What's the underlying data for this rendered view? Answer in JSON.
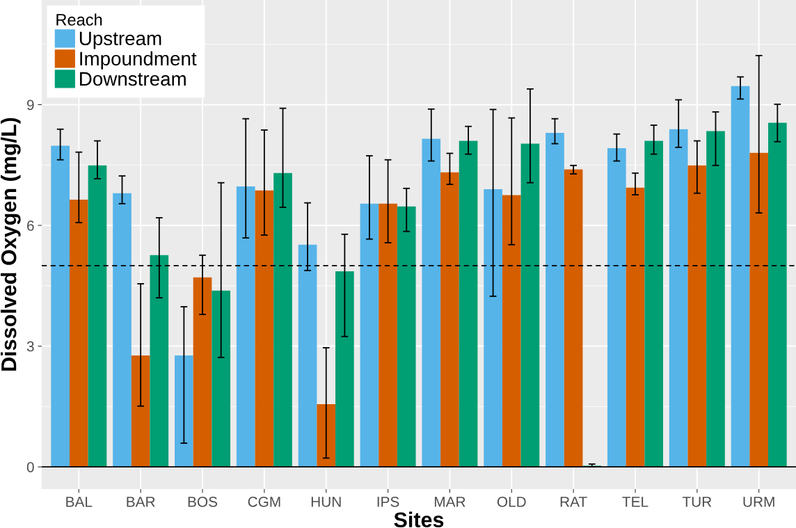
{
  "chart_data": {
    "type": "bar",
    "xlabel": "Sites",
    "ylabel": "Dissolved Oxygen (mg/L)",
    "legend_title": "Reach",
    "categories": [
      "BAL",
      "BAR",
      "BOS",
      "CGM",
      "HUN",
      "IPS",
      "MAR",
      "OLD",
      "RAT",
      "TEL",
      "TUR",
      "URM"
    ],
    "series": [
      {
        "name": "Upstream",
        "color": "#56b4e9",
        "values": [
          7.98,
          6.8,
          2.77,
          6.97,
          5.52,
          6.54,
          8.15,
          6.9,
          8.3,
          7.92,
          8.39,
          9.46
        ],
        "errors": [
          [
            7.63,
            8.39
          ],
          [
            6.54,
            7.23
          ],
          [
            0.59,
            3.98
          ],
          [
            5.69,
            8.65
          ],
          [
            4.88,
            6.56
          ],
          [
            5.66,
            7.73
          ],
          [
            7.6,
            8.89
          ],
          [
            4.24,
            8.88
          ],
          [
            8.03,
            8.65
          ],
          [
            7.6,
            8.27
          ],
          [
            7.94,
            9.12
          ],
          [
            9.14,
            9.69
          ]
        ]
      },
      {
        "name": "Impoundment",
        "color": "#d55e00",
        "values": [
          6.64,
          2.77,
          4.71,
          6.87,
          1.56,
          6.54,
          7.32,
          6.75,
          7.39,
          6.94,
          7.49,
          7.8
        ],
        "errors": [
          [
            6.07,
            7.82
          ],
          [
            1.51,
            4.55
          ],
          [
            3.79,
            5.26
          ],
          [
            5.76,
            8.37
          ],
          [
            0.22,
            2.96
          ],
          [
            5.57,
            7.63
          ],
          [
            7.02,
            7.79
          ],
          [
            5.52,
            8.67
          ],
          [
            7.28,
            7.49
          ],
          [
            6.76,
            7.3
          ],
          [
            6.8,
            8.1
          ],
          [
            6.31,
            10.22
          ]
        ]
      },
      {
        "name": "Downstream",
        "color": "#009e73",
        "values": [
          7.49,
          5.26,
          4.38,
          7.3,
          4.86,
          6.47,
          8.1,
          8.03,
          0.03,
          8.1,
          8.34,
          8.55
        ],
        "errors": [
          [
            7.16,
            8.1
          ],
          [
            4.2,
            6.19
          ],
          [
            2.72,
            7.06
          ],
          [
            6.45,
            8.91
          ],
          [
            3.24,
            5.78
          ],
          [
            5.85,
            6.92
          ],
          [
            7.77,
            8.46
          ],
          [
            7.06,
            9.39
          ],
          [
            0,
            0.07
          ],
          [
            7.77,
            8.49
          ],
          [
            7.49,
            8.82
          ],
          [
            8.08,
            9.01
          ]
        ]
      }
    ],
    "ylim": [
      -0.55,
      11.6
    ],
    "yticks": [
      0,
      3,
      6,
      9
    ],
    "ref_lines": [
      {
        "axis": "y",
        "value": 5,
        "line_style": "dashed",
        "color": "#000000"
      },
      {
        "axis": "y",
        "value": 0,
        "line_style": "solid",
        "color": "#000000"
      }
    ],
    "grid": true,
    "legend": "top left"
  }
}
